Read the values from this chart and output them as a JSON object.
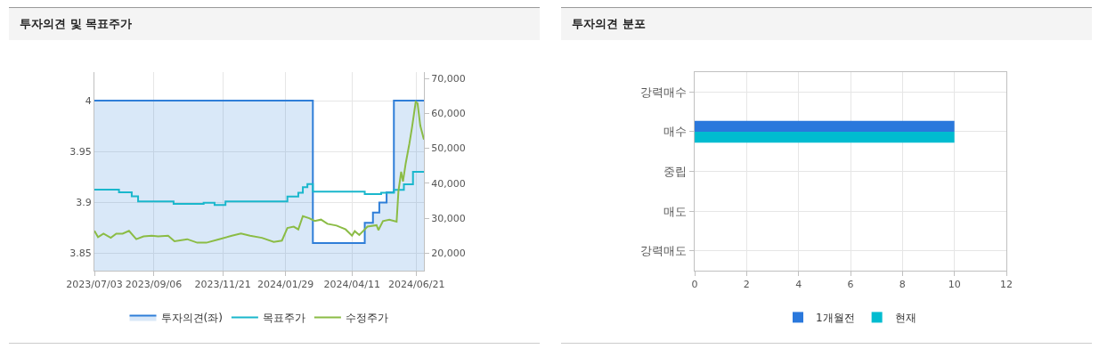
{
  "chart_data": [
    {
      "type": "line",
      "title": "투자의견 및 목표주가",
      "xlim": [
        "2023-07-03",
        "2024-06-29"
      ],
      "xticks": [
        {
          "value": "2023-07-03",
          "label": "2023/07/03"
        },
        {
          "value": "2023-09-06",
          "label": "2023/09/06"
        },
        {
          "value": "2023-11-21",
          "label": "2023/11/21"
        },
        {
          "value": "2024-01-29",
          "label": "2024/01/29"
        },
        {
          "value": "2024-04-11",
          "label": "2024/04/11"
        },
        {
          "value": "2024-06-21",
          "label": "2024/06/21"
        }
      ],
      "ylim": [
        3.833,
        4.028
      ],
      "yticks": [
        {
          "value": 3.85,
          "label": "3.85"
        },
        {
          "value": 3.9,
          "label": "3.9"
        },
        {
          "value": 3.95,
          "label": "3.95"
        },
        4
      ],
      "y2lim": [
        15000,
        71800
      ],
      "y2ticks": [
        {
          "value": 20000,
          "label": "20,000"
        },
        {
          "value": 30000,
          "label": "30,000"
        },
        {
          "value": 40000,
          "label": "40,000"
        },
        {
          "value": 50000,
          "label": "50,000"
        },
        {
          "value": 60000,
          "label": "60,000"
        },
        {
          "value": 70000,
          "label": "70,000"
        }
      ],
      "grid": true,
      "legend": "bottom",
      "series": [
        {
          "name": "투자의견(좌)",
          "type": "area",
          "color": "#2f7ed8",
          "x": [
            "2023-07-03",
            "2024-02-28",
            "2024-02-28",
            "2024-04-25",
            "2024-04-25",
            "2024-05-04",
            "2024-05-04",
            "2024-05-11",
            "2024-05-11",
            "2024-05-19",
            "2024-05-19",
            "2024-05-27",
            "2024-05-27",
            "2024-06-29"
          ],
          "values": [
            4,
            4,
            3.86,
            3.86,
            3.88,
            3.88,
            3.89,
            3.89,
            3.9,
            3.9,
            3.91,
            3.91,
            4,
            4
          ]
        },
        {
          "name": "목표주가",
          "type": "step",
          "axis": "y2",
          "color": "#1ab7cc",
          "x": [
            "2023-07-03",
            "2023-07-30",
            "2023-08-13",
            "2023-08-20",
            "2023-09-28",
            "2023-10-31",
            "2023-11-12",
            "2023-11-24",
            "2024-01-31",
            "2024-02-12",
            "2024-02-17",
            "2024-02-22",
            "2024-02-28",
            "2024-04-25",
            "2024-05-13",
            "2024-05-27",
            "2024-06-07",
            "2024-06-17",
            "2024-06-29"
          ],
          "values": [
            38200,
            37400,
            36300,
            34800,
            34100,
            34400,
            33800,
            34800,
            36200,
            37300,
            38900,
            39800,
            37600,
            36900,
            37300,
            38100,
            39700,
            43300,
            43300
          ]
        },
        {
          "name": "수정주가",
          "type": "line",
          "axis": "y2",
          "color": "#8bbc45",
          "x": [
            "2023-07-03",
            "2023-07-07",
            "2023-07-13",
            "2023-07-21",
            "2023-07-27",
            "2023-08-03",
            "2023-08-10",
            "2023-08-18",
            "2023-08-26",
            "2023-09-04",
            "2023-09-11",
            "2023-09-22",
            "2023-09-29",
            "2023-10-13",
            "2023-10-24",
            "2023-11-03",
            "2023-11-17",
            "2023-12-01",
            "2023-12-11",
            "2023-12-21",
            "2024-01-03",
            "2024-01-16",
            "2024-01-25",
            "2024-01-31",
            "2024-02-07",
            "2024-02-12",
            "2024-02-17",
            "2024-02-24",
            "2024-03-01",
            "2024-03-08",
            "2024-03-15",
            "2024-03-25",
            "2024-04-04",
            "2024-04-11",
            "2024-04-14",
            "2024-04-19",
            "2024-04-28",
            "2024-05-08",
            "2024-05-10",
            "2024-05-15",
            "2024-05-22",
            "2024-05-30",
            "2024-06-01",
            "2024-06-04",
            "2024-06-06",
            "2024-06-09",
            "2024-06-13",
            "2024-06-16",
            "2024-06-20",
            "2024-06-22",
            "2024-06-25",
            "2024-06-29"
          ],
          "values": [
            26400,
            24600,
            25600,
            24400,
            25600,
            25600,
            26400,
            24000,
            24800,
            25000,
            24800,
            25000,
            23400,
            24000,
            23000,
            23000,
            24000,
            25000,
            25600,
            25000,
            24400,
            23200,
            23600,
            27200,
            27600,
            26800,
            30600,
            30000,
            29200,
            29600,
            28400,
            27900,
            26800,
            25000,
            26300,
            25200,
            27600,
            28000,
            26600,
            29200,
            29600,
            29000,
            37700,
            43300,
            40500,
            45700,
            51300,
            56100,
            63300,
            62900,
            56500,
            52500
          ]
        }
      ]
    },
    {
      "type": "bar",
      "title": "투자의견 분포",
      "orientation": "horizontal",
      "categories": [
        "강력매수",
        "매수",
        "중립",
        "매도",
        "강력매도"
      ],
      "xlim": [
        0,
        12
      ],
      "xticks": [
        0,
        2,
        4,
        6,
        8,
        10,
        12
      ],
      "grid": true,
      "legend": "bottom",
      "series": [
        {
          "name": "1개월전",
          "color": "#2a78dc",
          "values": [
            0,
            10,
            0,
            0,
            0
          ]
        },
        {
          "name": "현재",
          "color": "#00bcd0",
          "values": [
            0,
            10,
            0,
            0,
            0
          ]
        }
      ]
    }
  ]
}
